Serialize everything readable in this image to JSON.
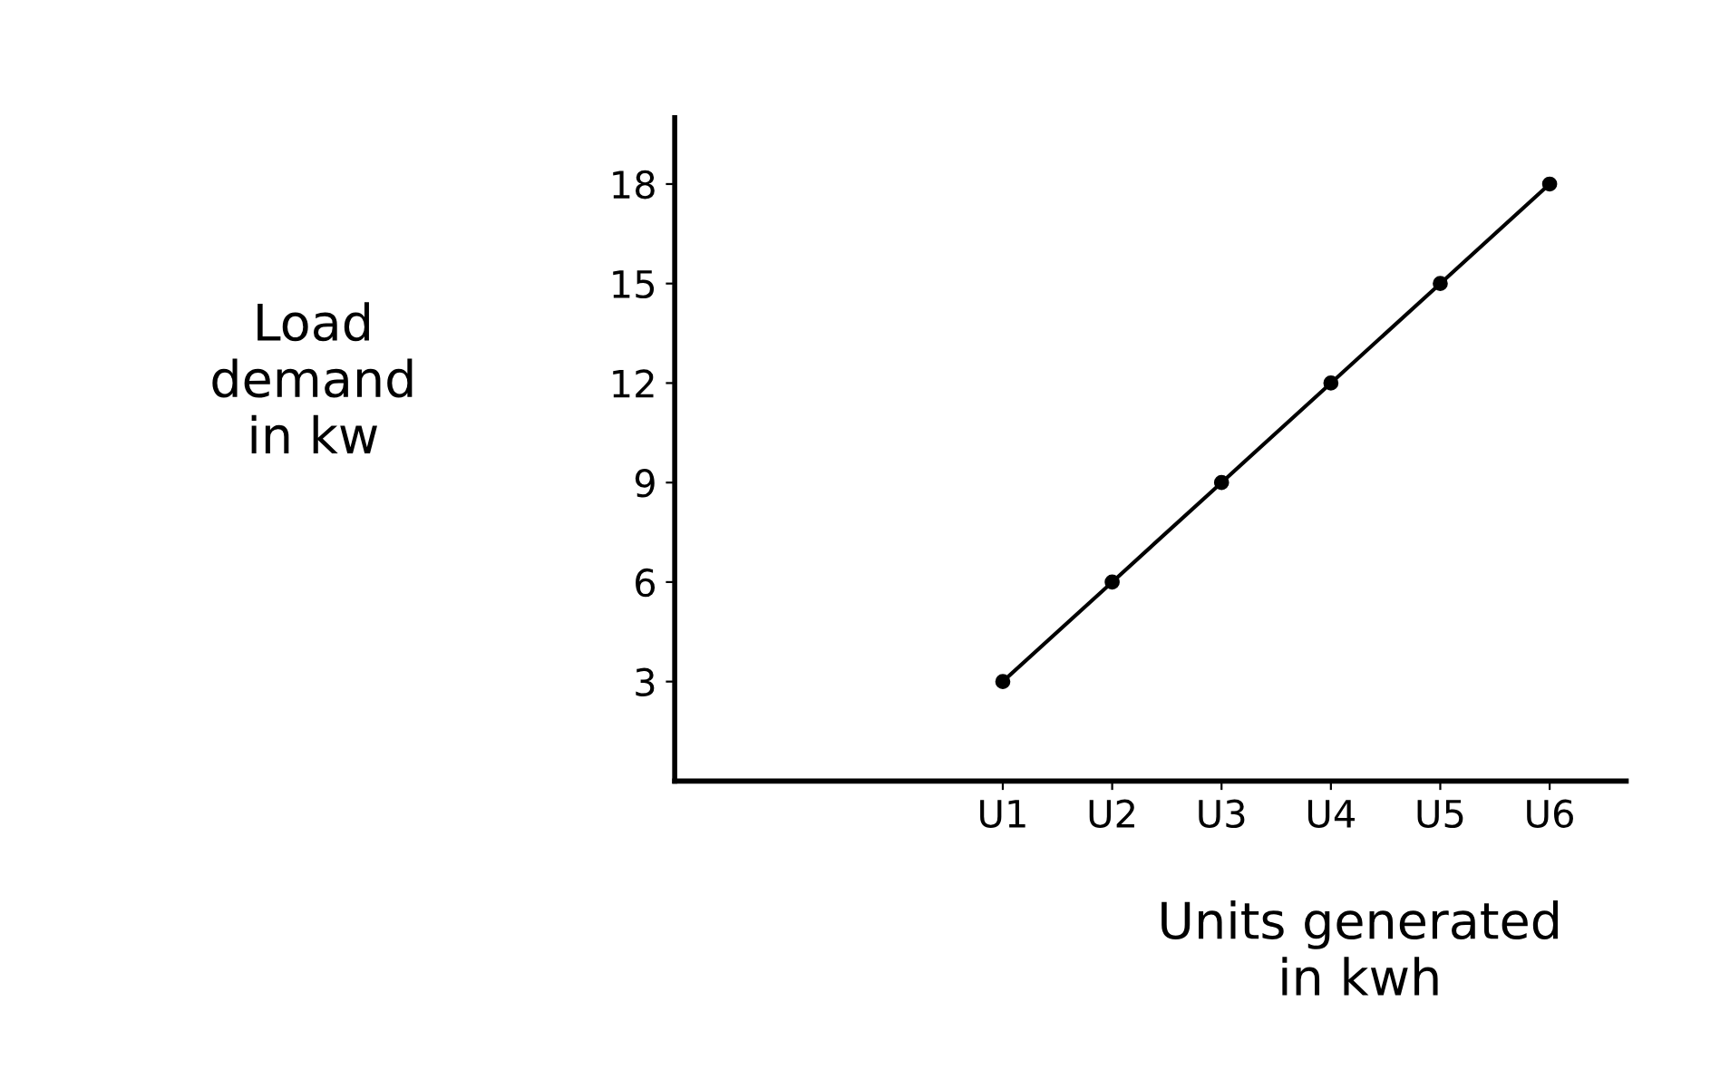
{
  "chart_data": {
    "type": "line",
    "xlabel": "Units generated\nin kwh",
    "ylabel": "Load\ndemand\nin kw",
    "categories": [
      "U1",
      "U2",
      "U3",
      "U4",
      "U5",
      "U6"
    ],
    "series": [
      {
        "color": "#000000",
        "values": [
          3,
          6,
          9,
          12,
          15,
          18
        ]
      }
    ],
    "ylim": [
      0,
      20
    ],
    "yticks": [
      3,
      6,
      9,
      12,
      15,
      18
    ],
    "marker": "circle",
    "line_style": "solid",
    "grid": false,
    "legend": false
  }
}
